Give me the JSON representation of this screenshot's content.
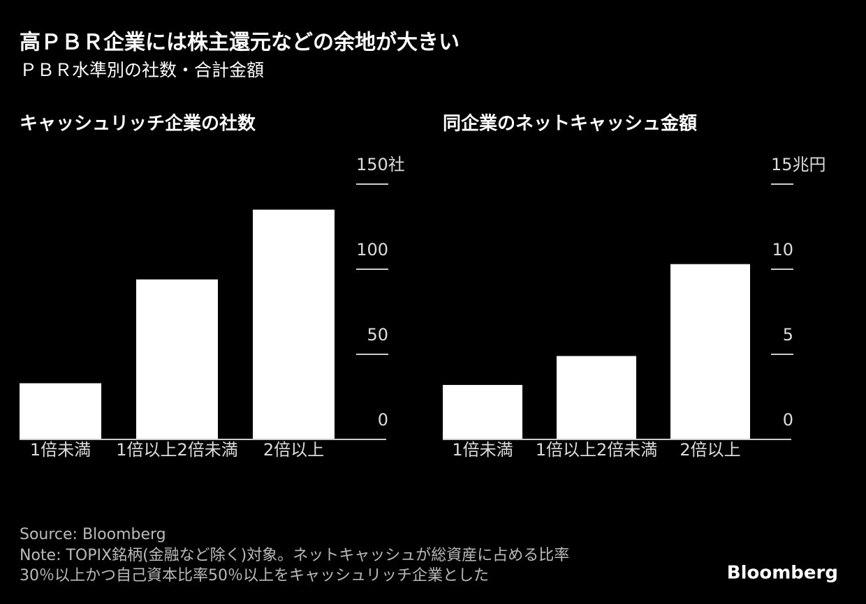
{
  "title": "高ＰＢＲ企業には株主還元などの余地が大きい",
  "subtitle": "ＰＢＲ水準別の社数・合計金額",
  "source": "Source: Bloomberg",
  "note": [
    "Note: TOPIX銘柄(金融など除く)対象。ネットキャッシュが総資産に占める比率",
    "30％以上かつ自己資本比率50％以上をキャッシュリッチ企業とした"
  ],
  "logo": "Bloomberg",
  "chart_data": [
    {
      "type": "bar",
      "title": "キャッシュリッチ企業の社数",
      "categories": [
        "1倍未満",
        "1倍以上2倍未満",
        "2倍以上"
      ],
      "values": [
        33,
        94,
        135
      ],
      "color": "#ffffff",
      "ylim": [
        0,
        150
      ],
      "yticks": [
        0,
        50,
        100,
        {
          "value": 150,
          "label": "150社"
        }
      ]
    },
    {
      "type": "bar",
      "title": "同企業のネットキャッシュ金額",
      "categories": [
        "1倍未満",
        "1倍以上2倍未満",
        "2倍以上"
      ],
      "values": [
        3.2,
        4.9,
        10.3
      ],
      "color": "#ffffff",
      "ylim": [
        0,
        15
      ],
      "yticks": [
        0,
        5,
        10,
        {
          "value": 15,
          "label": "15兆円"
        }
      ]
    }
  ]
}
